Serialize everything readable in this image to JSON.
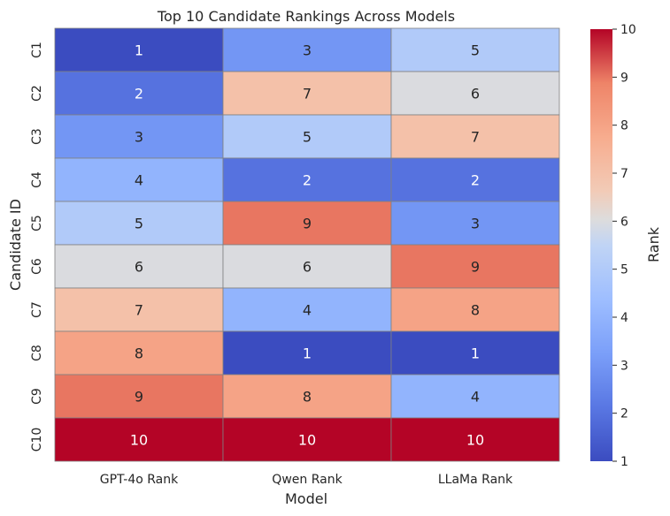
{
  "chart_data": {
    "type": "heatmap",
    "title": "Top 10 Candidate Rankings Across Models",
    "xlabel": "Model",
    "ylabel": "Candidate ID",
    "columns": [
      "GPT-4o Rank",
      "Qwen Rank",
      "LLaMa Rank"
    ],
    "rows": [
      "C1",
      "C2",
      "C3",
      "C4",
      "C5",
      "C6",
      "C7",
      "C8",
      "C9",
      "C10"
    ],
    "values": [
      [
        1,
        3,
        5
      ],
      [
        2,
        7,
        6
      ],
      [
        3,
        5,
        7
      ],
      [
        4,
        2,
        2
      ],
      [
        5,
        9,
        3
      ],
      [
        6,
        6,
        9
      ],
      [
        7,
        4,
        8
      ],
      [
        8,
        1,
        1
      ],
      [
        9,
        8,
        4
      ],
      [
        10,
        10,
        10
      ]
    ],
    "colormap": "coolwarm",
    "vmin": 1,
    "vmax": 10,
    "colorbar": {
      "label": "Rank",
      "ticks": [
        1,
        2,
        3,
        4,
        5,
        6,
        7,
        8,
        9,
        10
      ]
    },
    "annotate": true,
    "cell_border_color": "#808080"
  }
}
